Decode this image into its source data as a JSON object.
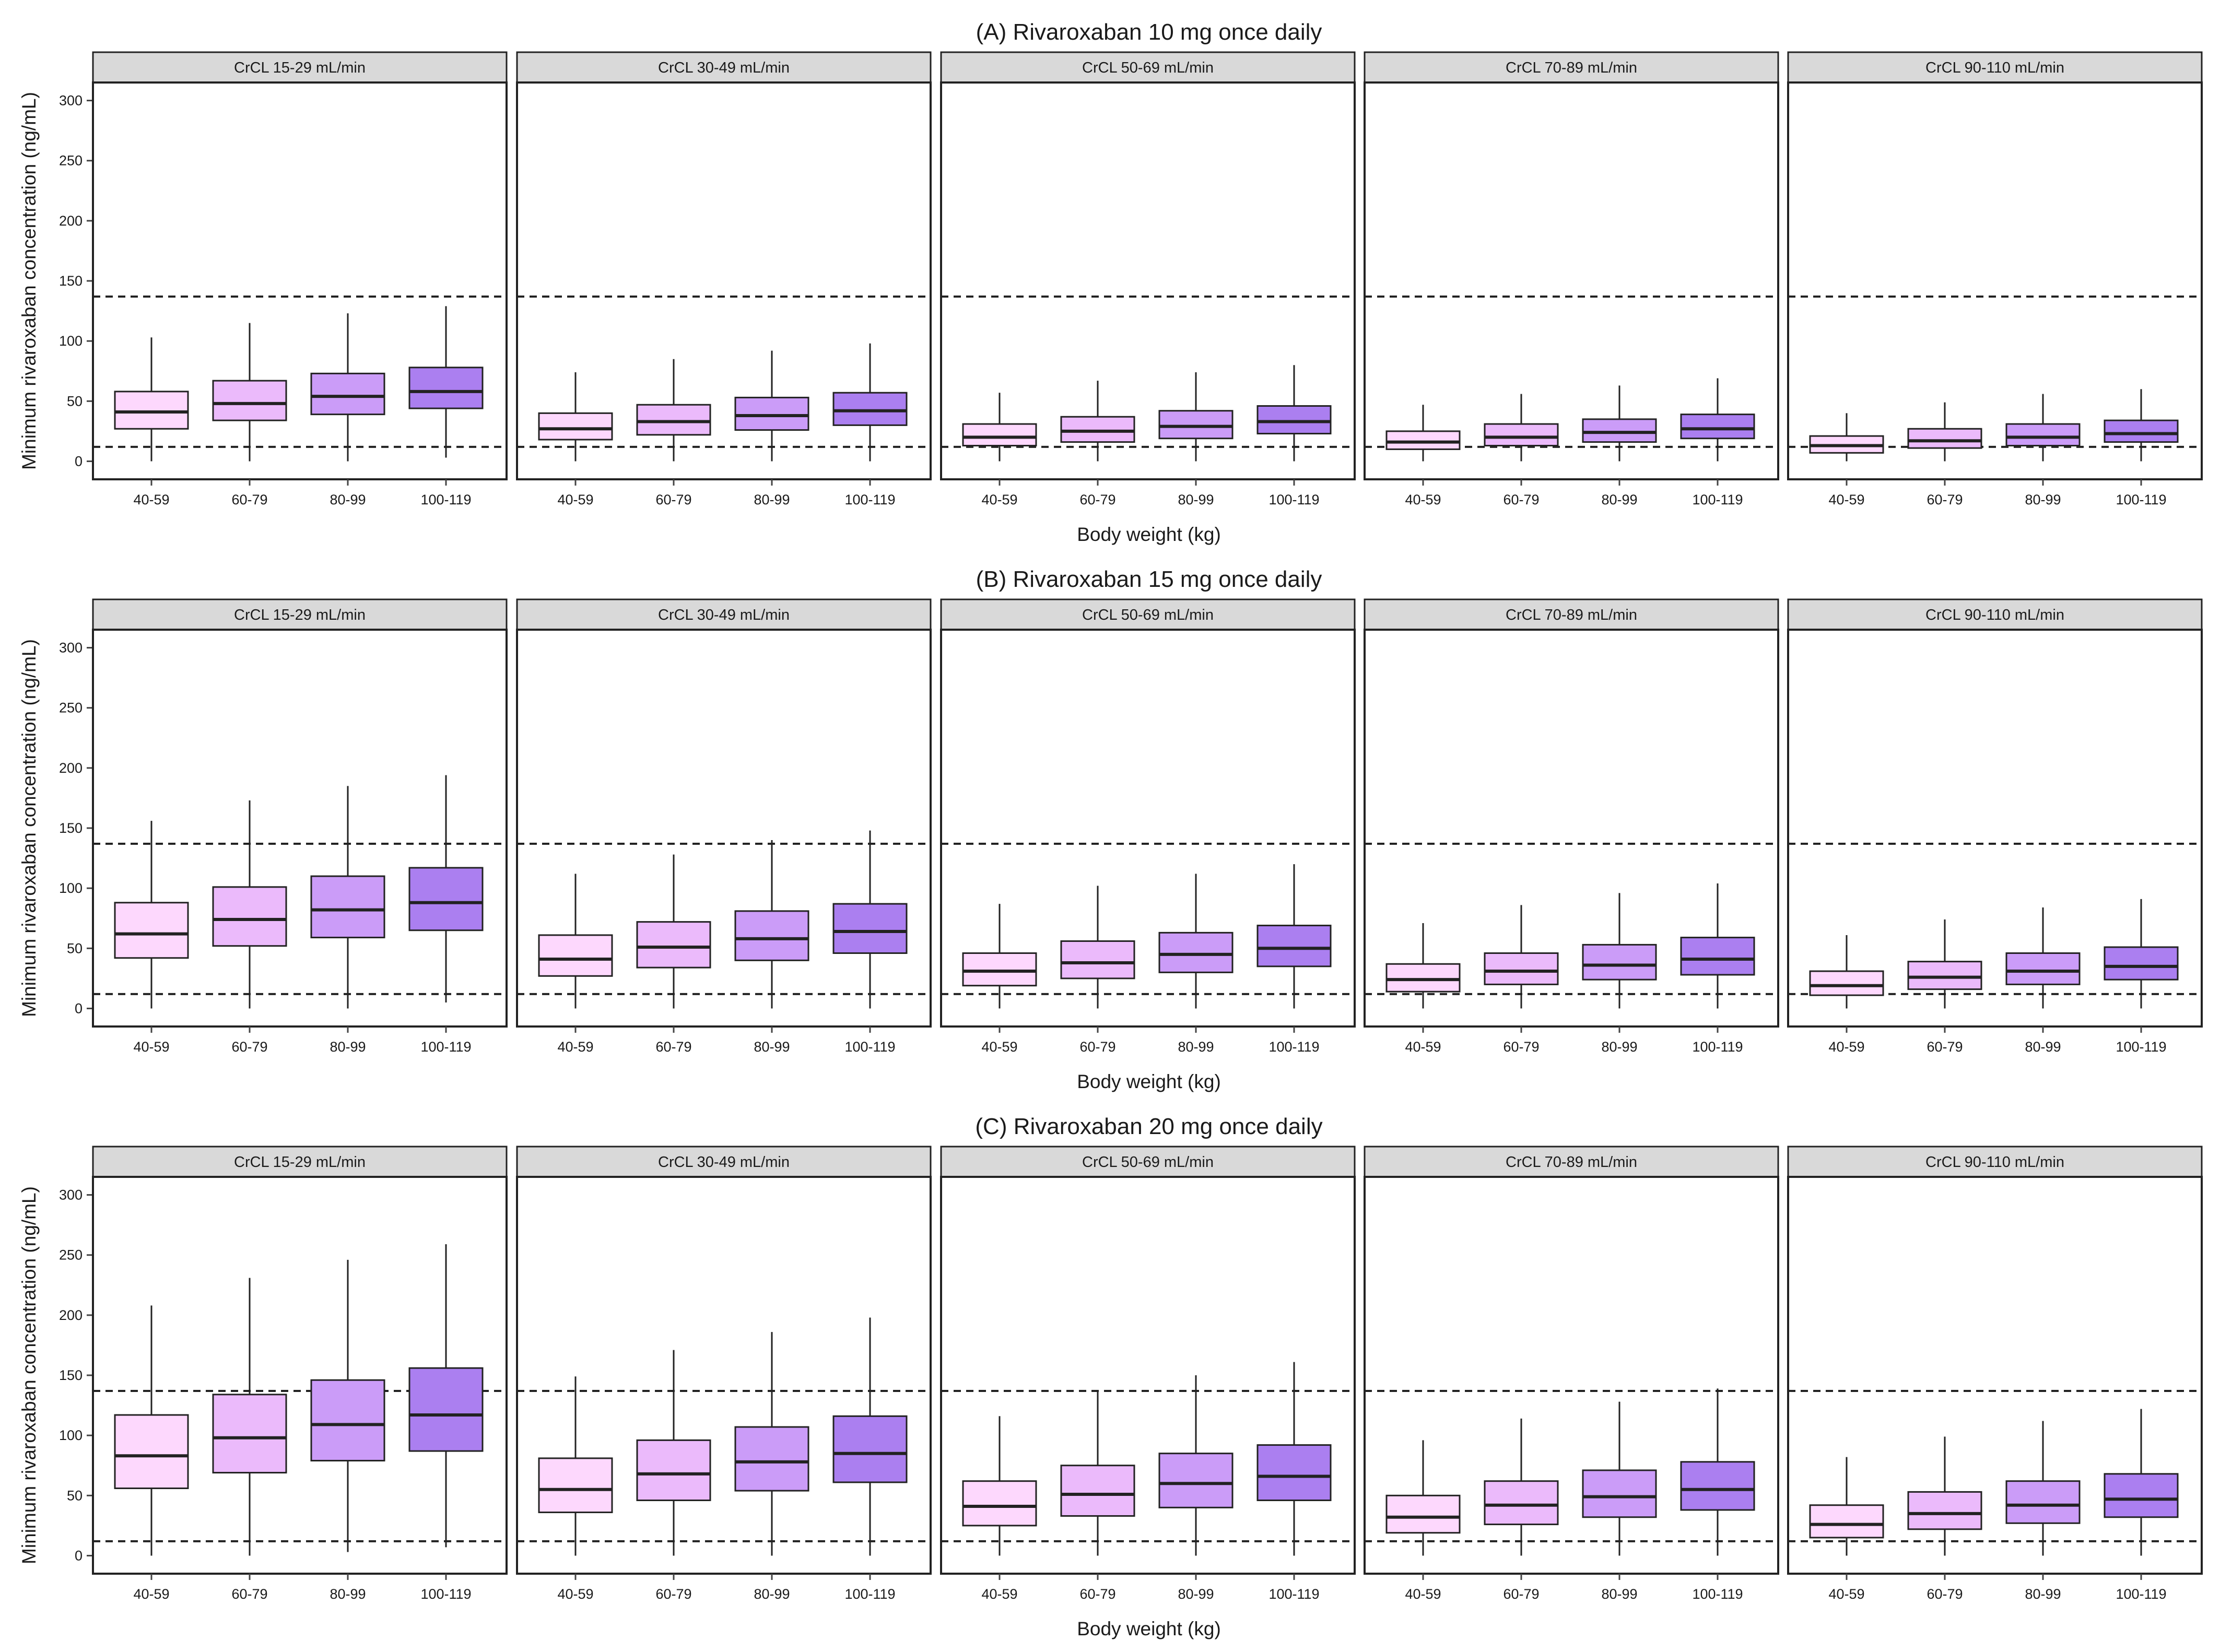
{
  "chart_data": [
    {
      "type": "box",
      "title": "(A) Rivaroxaban 10 mg once daily",
      "xlabel": "Body weight (kg)",
      "ylabel": "Minimum rivaroxaban concentration (ng/mL)",
      "ylim": [
        -15,
        315
      ],
      "yticks": [
        0,
        50,
        100,
        150,
        200,
        250,
        300
      ],
      "ref_lines": [
        12,
        137
      ],
      "categories": [
        "40-59",
        "60-79",
        "80-99",
        "100-119"
      ],
      "category_colors": [
        "#fdd8fd",
        "#ebbafb",
        "#cb9cf8",
        "#ab7ff0"
      ],
      "panels": [
        {
          "label": "CrCL 15-29 mL/min",
          "boxes": [
            {
              "min": 0,
              "q1": 27,
              "median": 41,
              "q3": 58,
              "max": 103
            },
            {
              "min": 0,
              "q1": 34,
              "median": 48,
              "q3": 67,
              "max": 115
            },
            {
              "min": 0,
              "q1": 39,
              "median": 54,
              "q3": 73,
              "max": 123
            },
            {
              "min": 3,
              "q1": 44,
              "median": 58,
              "q3": 78,
              "max": 129
            }
          ]
        },
        {
          "label": "CrCL 30-49 mL/min",
          "boxes": [
            {
              "min": 0,
              "q1": 18,
              "median": 27,
              "q3": 40,
              "max": 74
            },
            {
              "min": 0,
              "q1": 22,
              "median": 33,
              "q3": 47,
              "max": 85
            },
            {
              "min": 0,
              "q1": 26,
              "median": 38,
              "q3": 53,
              "max": 92
            },
            {
              "min": 0,
              "q1": 30,
              "median": 42,
              "q3": 57,
              "max": 98
            }
          ]
        },
        {
          "label": "CrCL 50-69 mL/min",
          "boxes": [
            {
              "min": 0,
              "q1": 13,
              "median": 20,
              "q3": 31,
              "max": 57
            },
            {
              "min": 0,
              "q1": 16,
              "median": 25,
              "q3": 37,
              "max": 67
            },
            {
              "min": 0,
              "q1": 19,
              "median": 29,
              "q3": 42,
              "max": 74
            },
            {
              "min": 0,
              "q1": 23,
              "median": 33,
              "q3": 46,
              "max": 80
            }
          ]
        },
        {
          "label": "CrCL 70-89 mL/min",
          "boxes": [
            {
              "min": 0,
              "q1": 10,
              "median": 16,
              "q3": 25,
              "max": 47
            },
            {
              "min": 0,
              "q1": 13,
              "median": 20,
              "q3": 31,
              "max": 56
            },
            {
              "min": 0,
              "q1": 16,
              "median": 24,
              "q3": 35,
              "max": 63
            },
            {
              "min": 0,
              "q1": 19,
              "median": 27,
              "q3": 39,
              "max": 69
            }
          ]
        },
        {
          "label": "CrCL 90-110 mL/min",
          "boxes": [
            {
              "min": 0,
              "q1": 7,
              "median": 13,
              "q3": 21,
              "max": 40
            },
            {
              "min": 0,
              "q1": 11,
              "median": 17,
              "q3": 27,
              "max": 49
            },
            {
              "min": 0,
              "q1": 13,
              "median": 20,
              "q3": 31,
              "max": 56
            },
            {
              "min": 0,
              "q1": 16,
              "median": 23,
              "q3": 34,
              "max": 60
            }
          ]
        }
      ]
    },
    {
      "type": "box",
      "title": "(B) Rivaroxaban 15 mg once daily",
      "xlabel": "Body weight (kg)",
      "ylabel": "Minimum rivaroxaban concentration (ng/mL)",
      "ylim": [
        -15,
        315
      ],
      "yticks": [
        0,
        50,
        100,
        150,
        200,
        250,
        300
      ],
      "ref_lines": [
        12,
        137
      ],
      "categories": [
        "40-59",
        "60-79",
        "80-99",
        "100-119"
      ],
      "category_colors": [
        "#fdd8fd",
        "#ebbafb",
        "#cb9cf8",
        "#ab7ff0"
      ],
      "panels": [
        {
          "label": "CrCL 15-29 mL/min",
          "boxes": [
            {
              "min": 0,
              "q1": 42,
              "median": 62,
              "q3": 88,
              "max": 156
            },
            {
              "min": 0,
              "q1": 52,
              "median": 74,
              "q3": 101,
              "max": 173
            },
            {
              "min": 0,
              "q1": 59,
              "median": 82,
              "q3": 110,
              "max": 185
            },
            {
              "min": 5,
              "q1": 65,
              "median": 88,
              "q3": 117,
              "max": 194
            }
          ]
        },
        {
          "label": "CrCL 30-49 mL/min",
          "boxes": [
            {
              "min": 0,
              "q1": 27,
              "median": 41,
              "q3": 61,
              "max": 112
            },
            {
              "min": 0,
              "q1": 34,
              "median": 51,
              "q3": 72,
              "max": 128
            },
            {
              "min": 0,
              "q1": 40,
              "median": 58,
              "q3": 81,
              "max": 140
            },
            {
              "min": 0,
              "q1": 46,
              "median": 64,
              "q3": 87,
              "max": 148
            }
          ]
        },
        {
          "label": "CrCL 50-69 mL/min",
          "boxes": [
            {
              "min": 0,
              "q1": 19,
              "median": 31,
              "q3": 46,
              "max": 87
            },
            {
              "min": 0,
              "q1": 25,
              "median": 38,
              "q3": 56,
              "max": 102
            },
            {
              "min": 0,
              "q1": 30,
              "median": 45,
              "q3": 63,
              "max": 112
            },
            {
              "min": 0,
              "q1": 35,
              "median": 50,
              "q3": 69,
              "max": 120
            }
          ]
        },
        {
          "label": "CrCL 70-89 mL/min",
          "boxes": [
            {
              "min": 0,
              "q1": 14,
              "median": 24,
              "q3": 37,
              "max": 71
            },
            {
              "min": 0,
              "q1": 20,
              "median": 31,
              "q3": 46,
              "max": 86
            },
            {
              "min": 0,
              "q1": 24,
              "median": 36,
              "q3": 53,
              "max": 96
            },
            {
              "min": 0,
              "q1": 28,
              "median": 41,
              "q3": 59,
              "max": 104
            }
          ]
        },
        {
          "label": "CrCL 90-110 mL/min",
          "boxes": [
            {
              "min": 0,
              "q1": 11,
              "median": 19,
              "q3": 31,
              "max": 61
            },
            {
              "min": 0,
              "q1": 16,
              "median": 26,
              "q3": 39,
              "max": 74
            },
            {
              "min": 0,
              "q1": 20,
              "median": 31,
              "q3": 46,
              "max": 84
            },
            {
              "min": 0,
              "q1": 24,
              "median": 35,
              "q3": 51,
              "max": 91
            }
          ]
        }
      ]
    },
    {
      "type": "box",
      "title": "(C) Rivaroxaban 20 mg once daily",
      "xlabel": "Body weight (kg)",
      "ylabel": "Minimum rivaroxaban concentration (ng/mL)",
      "ylim": [
        -15,
        315
      ],
      "yticks": [
        0,
        50,
        100,
        150,
        200,
        250,
        300
      ],
      "ref_lines": [
        12,
        137
      ],
      "categories": [
        "40-59",
        "60-79",
        "80-99",
        "100-119"
      ],
      "category_colors": [
        "#fdd8fd",
        "#ebbafb",
        "#cb9cf8",
        "#ab7ff0"
      ],
      "panels": [
        {
          "label": "CrCL 15-29 mL/min",
          "boxes": [
            {
              "min": 0,
              "q1": 56,
              "median": 83,
              "q3": 117,
              "max": 208
            },
            {
              "min": 0,
              "q1": 69,
              "median": 98,
              "q3": 134,
              "max": 231
            },
            {
              "min": 3,
              "q1": 79,
              "median": 109,
              "q3": 146,
              "max": 246
            },
            {
              "min": 7,
              "q1": 87,
              "median": 117,
              "q3": 156,
              "max": 259
            }
          ]
        },
        {
          "label": "CrCL 30-49 mL/min",
          "boxes": [
            {
              "min": 0,
              "q1": 36,
              "median": 55,
              "q3": 81,
              "max": 149
            },
            {
              "min": 0,
              "q1": 46,
              "median": 68,
              "q3": 96,
              "max": 171
            },
            {
              "min": 0,
              "q1": 54,
              "median": 78,
              "q3": 107,
              "max": 186
            },
            {
              "min": 0,
              "q1": 61,
              "median": 85,
              "q3": 116,
              "max": 198
            }
          ]
        },
        {
          "label": "CrCL 50-69 mL/min",
          "boxes": [
            {
              "min": 0,
              "q1": 25,
              "median": 41,
              "q3": 62,
              "max": 116
            },
            {
              "min": 0,
              "q1": 33,
              "median": 51,
              "q3": 75,
              "max": 137
            },
            {
              "min": 0,
              "q1": 40,
              "median": 60,
              "q3": 85,
              "max": 150
            },
            {
              "min": 0,
              "q1": 46,
              "median": 66,
              "q3": 92,
              "max": 161
            }
          ]
        },
        {
          "label": "CrCL 70-89 mL/min",
          "boxes": [
            {
              "min": 0,
              "q1": 19,
              "median": 32,
              "q3": 50,
              "max": 96
            },
            {
              "min": 0,
              "q1": 26,
              "median": 42,
              "q3": 62,
              "max": 114
            },
            {
              "min": 0,
              "q1": 32,
              "median": 49,
              "q3": 71,
              "max": 128
            },
            {
              "min": 0,
              "q1": 38,
              "median": 55,
              "q3": 78,
              "max": 139
            }
          ]
        },
        {
          "label": "CrCL 90-110 mL/min",
          "boxes": [
            {
              "min": 0,
              "q1": 15,
              "median": 26,
              "q3": 42,
              "max": 82
            },
            {
              "min": 0,
              "q1": 22,
              "median": 35,
              "q3": 53,
              "max": 99
            },
            {
              "min": 0,
              "q1": 27,
              "median": 42,
              "q3": 62,
              "max": 112
            },
            {
              "min": 0,
              "q1": 32,
              "median": 47,
              "q3": 68,
              "max": 122
            }
          ]
        }
      ]
    }
  ]
}
